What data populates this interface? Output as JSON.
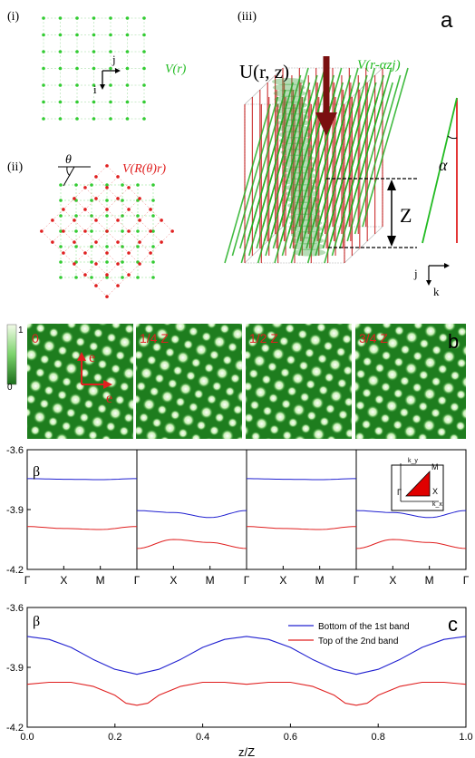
{
  "panel_a": {
    "letter": "a",
    "sub_i": "(i)",
    "sub_ii": "(ii)",
    "sub_iii": "(iii)",
    "lattice_label": "V(r)",
    "rotated_label": "V(R(θ)r)",
    "theta": "θ",
    "axis_j": "j",
    "axis_i": "i",
    "axis_k": "k",
    "U_label": "U(r, z)",
    "tilt_label": "V(r-αzj)",
    "alpha": "α",
    "Z": "Z"
  },
  "panel_b": {
    "letter": "b",
    "frame_labels": [
      "0",
      "1/4 Z",
      "1/2 Z",
      "3/4 Z"
    ],
    "e_vertical": "e",
    "e_horizontal": "e",
    "colorbar_ticks": [
      "1",
      "0"
    ],
    "colors": {
      "dark_green": "#1e7d1e",
      "light": "#e9f7d7"
    }
  },
  "chart_data": [
    {
      "type": "line",
      "title": "",
      "ylabel": "β",
      "ylim": [
        -4.2,
        -3.6
      ],
      "yticks": [
        "-3.6",
        "-3.9",
        "-4.2"
      ],
      "xticks_per_panel": [
        "Γ",
        "X",
        "M",
        "Γ"
      ],
      "panels": 4,
      "inset": {
        "labels": [
          "M",
          "X",
          "Γ",
          "k_y",
          "k_x"
        ],
        "fill": "#e00000"
      },
      "series": [
        {
          "name": "",
          "color": "#2020d0",
          "panel_values": [
            [
              -3.745,
              -3.748,
              -3.75,
              -3.745
            ],
            [
              -3.905,
              -3.915,
              -3.94,
              -3.905
            ],
            [
              -3.745,
              -3.748,
              -3.75,
              -3.745
            ],
            [
              -3.905,
              -3.915,
              -3.94,
              -3.905
            ]
          ]
        },
        {
          "name": "",
          "color": "#e02020",
          "panel_values": [
            [
              -3.985,
              -3.995,
              -4.0,
              -3.985
            ],
            [
              -4.095,
              -4.05,
              -4.065,
              -4.095
            ],
            [
              -3.985,
              -3.995,
              -4.0,
              -3.985
            ],
            [
              -4.095,
              -4.05,
              -4.065,
              -4.095
            ]
          ]
        }
      ]
    },
    {
      "type": "line",
      "letter": "c",
      "ylabel": "β",
      "xlabel": "z/Z",
      "xlim": [
        0.0,
        1.0
      ],
      "ylim": [
        -4.2,
        -3.6
      ],
      "xticks": [
        "0.0",
        "0.2",
        "0.4",
        "0.6",
        "0.8",
        "1.0"
      ],
      "yticks": [
        "-3.6",
        "-3.9",
        "-4.2"
      ],
      "legend_position": "top-right",
      "series": [
        {
          "name": "Bottom of the 1st band",
          "color": "#2020d0",
          "x": [
            0.0,
            0.05,
            0.1,
            0.15,
            0.2,
            0.25,
            0.3,
            0.35,
            0.4,
            0.45,
            0.5,
            0.55,
            0.6,
            0.65,
            0.7,
            0.75,
            0.8,
            0.85,
            0.9,
            0.95,
            1.0
          ],
          "y": [
            -3.745,
            -3.76,
            -3.8,
            -3.86,
            -3.91,
            -3.935,
            -3.91,
            -3.86,
            -3.8,
            -3.76,
            -3.745,
            -3.76,
            -3.8,
            -3.86,
            -3.91,
            -3.935,
            -3.91,
            -3.86,
            -3.8,
            -3.76,
            -3.745
          ]
        },
        {
          "name": "Top of the 2nd band",
          "color": "#e02020",
          "x": [
            0.0,
            0.05,
            0.1,
            0.15,
            0.2,
            0.225,
            0.25,
            0.275,
            0.3,
            0.35,
            0.4,
            0.45,
            0.5,
            0.55,
            0.6,
            0.65,
            0.7,
            0.725,
            0.75,
            0.775,
            0.8,
            0.85,
            0.9,
            0.95,
            1.0
          ],
          "y": [
            -3.985,
            -3.975,
            -3.975,
            -3.995,
            -4.04,
            -4.08,
            -4.09,
            -4.08,
            -4.04,
            -3.995,
            -3.975,
            -3.975,
            -3.985,
            -3.975,
            -3.975,
            -3.995,
            -4.04,
            -4.08,
            -4.09,
            -4.08,
            -4.04,
            -3.995,
            -3.975,
            -3.975,
            -3.985
          ]
        }
      ]
    }
  ]
}
